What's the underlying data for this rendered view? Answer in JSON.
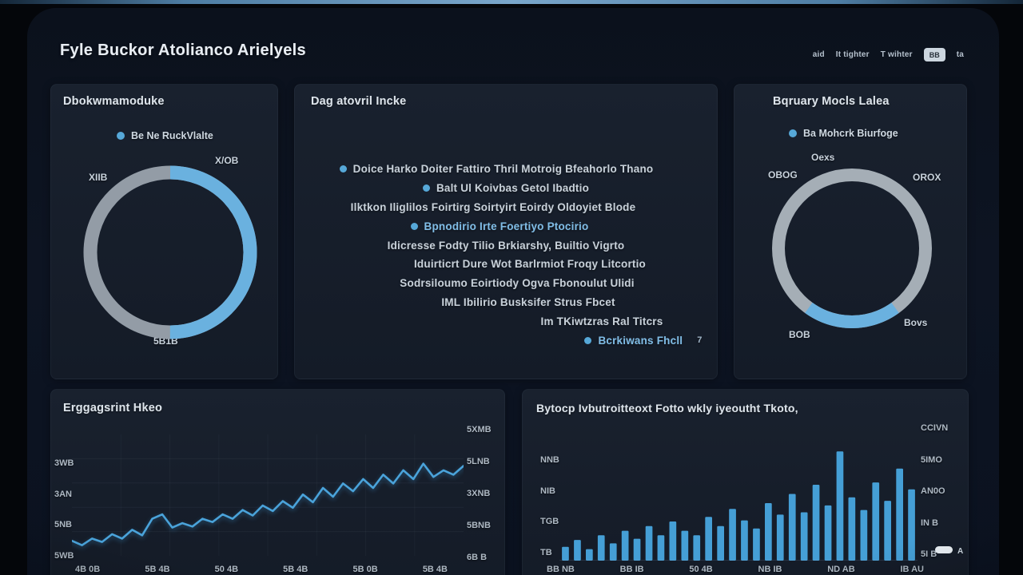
{
  "colors": {
    "accent_blue": "#6ab1df",
    "ring_gray": "#9aa3ac",
    "line_blue": "#4aa3da",
    "bar_blue": "#459fd6",
    "top_strip_blue": "#7aa6ca"
  },
  "header": {
    "title": "Fyle Buckor Atolianco Arielyels",
    "nav_items": [
      "aid",
      "It tighter",
      "T wihter"
    ],
    "action_button_label": "BB",
    "trailing_label": "ta"
  },
  "cards": {
    "donut_left": {
      "title": "Dbokwmamoduke",
      "legend_label": "Be Ne RuckVlalte",
      "label_top_right": "X/OB",
      "label_left": "XIIB",
      "label_bottom": "5B1B"
    },
    "insights": {
      "title": "Dag atovril Incke",
      "lines": [
        {
          "bullet": true,
          "accent": false,
          "text": "Doice Harko Doiter Fattiro Thril Motroig Bfeahorlo Thano"
        },
        {
          "bullet": true,
          "accent": false,
          "text": "Balt Ul Koivbas Getol Ibadtio"
        },
        {
          "bullet": false,
          "accent": false,
          "text": "Ilktkon Iliglilos Foirtirg Soirtyirt Eoirdy Oldoyiet Blode"
        },
        {
          "bullet": true,
          "accent": true,
          "text": "Bpnodirio Irte Foertiyo Ptocirio"
        },
        {
          "bullet": false,
          "accent": false,
          "text": "Idicresse Fodty Tilio Brkiarshy, Builtio Vigrto"
        },
        {
          "bullet": false,
          "accent": false,
          "text": "Iduirticrt Dure Wot Barlrmiot Froqy Litcortio"
        },
        {
          "bullet": false,
          "accent": false,
          "text": "Sodrsiloumo Eoirtiody Ogva Fbonoulut Ulidi"
        },
        {
          "bullet": false,
          "accent": false,
          "text": "IML Ibilirio Busksifer Strus Fbcet"
        },
        {
          "bullet": false,
          "accent": false,
          "text": "Im TKiwtzras Ral Titcrs"
        },
        {
          "bullet": true,
          "accent": true,
          "text": "Bcrkiwans Fhcll",
          "suffix": "7"
        }
      ]
    },
    "donut_right": {
      "title": "Bqruary Mocls Lalea",
      "legend_label": "Ba Mohcrk Biurfoge",
      "label_top": "Oexs",
      "label_left": "OBOG",
      "label_right": "OROX",
      "label_bottom_left": "BOB",
      "label_bottom_right": "Bovs"
    },
    "line_chart": {
      "title": "Erggagsrint Hkeo",
      "y_left": [
        "3WB",
        "3AN",
        "5NB",
        "5WB"
      ],
      "y_right": [
        "5XMB",
        "5LNB",
        "3XNB",
        "5BNB",
        "6B B"
      ],
      "x_labels": [
        "4B 0B",
        "5B 4B",
        "50 4B",
        "5B 4B",
        "5B 0B",
        "5B 4B"
      ]
    },
    "bar_chart": {
      "title": "Bytocp Ivbutroitteoxt Fotto wkly iyeoutht Tkoto,",
      "y_left": [
        "NNB",
        "NIB",
        "TGB",
        "TB"
      ],
      "y_right": [
        "CCIVN",
        "5IMO",
        "AN0O",
        "IN B",
        "5I B"
      ],
      "x_labels": [
        "BB NB",
        "BB IB",
        "50 4B",
        "NB IB",
        "ND AB",
        "IB AU"
      ],
      "corner_label": "A"
    }
  },
  "chart_data": [
    {
      "id": "storage-donut",
      "type": "pie",
      "start_angle": -90,
      "segments": [
        {
          "label": "Be Ne RuckVlalte",
          "value": 50,
          "color": "#6ab1df"
        },
        {
          "label": "other",
          "value": 50,
          "color": "#939ca6"
        }
      ]
    },
    {
      "id": "mode-donut",
      "type": "pie",
      "start_angle": 54,
      "segments": [
        {
          "label": "Ba Mohcrk Biurfoge",
          "value": 20,
          "color": "#6ab1df"
        },
        {
          "label": "other",
          "value": 80,
          "color": "#a5aeb6"
        }
      ]
    },
    {
      "id": "engagement-line",
      "type": "line",
      "color": "#4aa3da",
      "ylim": [
        0,
        100
      ],
      "values": [
        10,
        6,
        12,
        9,
        16,
        12,
        20,
        15,
        30,
        34,
        22,
        26,
        23,
        30,
        27,
        34,
        30,
        38,
        33,
        42,
        37,
        46,
        40,
        52,
        45,
        58,
        50,
        62,
        55,
        66,
        58,
        70,
        62,
        74,
        66,
        80,
        68,
        74,
        70,
        78
      ]
    },
    {
      "id": "volume-bars",
      "type": "bar",
      "color": "#459fd6",
      "ylim": [
        0,
        100
      ],
      "values": [
        12,
        18,
        10,
        22,
        15,
        26,
        19,
        30,
        22,
        34,
        26,
        22,
        38,
        30,
        45,
        35,
        28,
        50,
        40,
        58,
        42,
        66,
        48,
        95,
        55,
        44,
        68,
        52,
        80,
        62
      ]
    }
  ]
}
